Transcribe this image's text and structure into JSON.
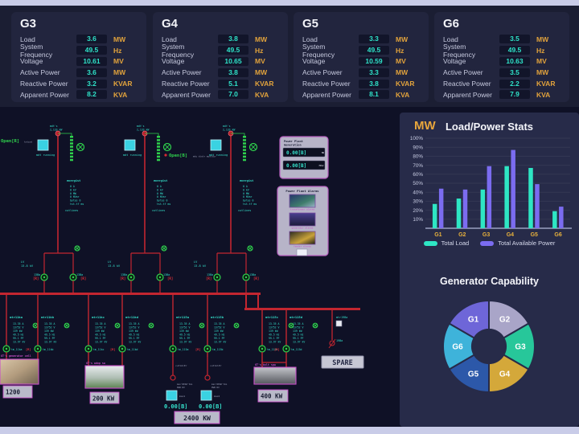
{
  "generator_panels": {
    "row_labels": [
      "Load",
      "System Frequency",
      "Voltage",
      "Active Power",
      "Reactive Power",
      "Apparent Power"
    ],
    "units": [
      "MW",
      "Hz",
      "MV",
      "MW",
      "KVAR",
      "KVA"
    ],
    "panels": [
      {
        "title": "G3",
        "values": [
          "3.6",
          "49.5",
          "10.61",
          "3.6",
          "3.2",
          "8.2"
        ]
      },
      {
        "title": "G4",
        "values": [
          "3.8",
          "49.5",
          "10.65",
          "3.8",
          "5.1",
          "7.0"
        ]
      },
      {
        "title": "G5",
        "values": [
          "3.3",
          "49.5",
          "10.59",
          "3.3",
          "3.8",
          "8.1"
        ]
      },
      {
        "title": "G6",
        "values": [
          "3.5",
          "49.5",
          "10.63",
          "3.5",
          "2.2",
          "7.9"
        ]
      }
    ]
  },
  "schematic": {
    "feeders": [
      {
        "top_lines": [
          "mdt's",
          "2,133 kW"
        ],
        "run_label": "mdt running"
      },
      {
        "top_lines": [
          "mdt's",
          "2,133 kW"
        ],
        "run_label": "mdt running"
      },
      {
        "top_lines": [
          "mdt's",
          "2,133 kW"
        ],
        "run_label": "mdt running"
      }
    ],
    "open_flags": [
      {
        "text": "Open[R]",
        "note": "txtout"
      },
      {
        "text": "Open[B]",
        "note": "mdy distr monitor"
      }
    ],
    "meas_header": "energist",
    "meas_lines": [
      "0 A",
      "0 kV",
      "0 MW",
      "0 MVar",
      "bytes 0",
      "tst.tf ms"
    ],
    "cutlines_label": "cutlines",
    "lv_lines": [
      "LV",
      "13.8 kV"
    ],
    "branch_breaker_label": "13Ba",
    "r_marker": "[R]",
    "bays": [
      {
        "label": "mtr11ka",
        "breaker": "tm_11ka"
      },
      {
        "label": "mtr11kb",
        "breaker": "tm_11kb"
      },
      {
        "label": "mtr11kc",
        "breaker": "tm_11kc"
      },
      {
        "label": "mtr11kd",
        "breaker": "tm_11kd"
      },
      {
        "label": "mtr115a",
        "breaker": "tm_115a"
      },
      {
        "label": "mtr115b",
        "breaker": "tm_115b"
      },
      {
        "label": "mtr115c",
        "breaker": "tm_115c"
      },
      {
        "label": "mtr115d",
        "breaker": "tm_115d"
      }
    ],
    "bay_lines": [
      "13.35 A",
      "13752 V",
      "139 kW",
      "49.5 Hz",
      "99.1 PF",
      "13.97 kV"
    ],
    "meters": {
      "labels": [
        "max1",
        "max2"
      ],
      "top_note": "cutlklEr",
      "mid_notes": [
        "max'READ'tAL",
        "PWR RV"
      ],
      "value": "0.00[B]",
      "total": "2400 KW"
    },
    "photos": [
      {
        "caption": "GT's generator cell",
        "value": "1200"
      },
      {
        "caption": "GT's adop sw",
        "value": "200 KW"
      },
      {
        "caption": "GT's bolt spw",
        "value": "400 KW"
      }
    ],
    "spare": {
      "bay_label": "mtr19Ba",
      "switch_label": "19Ba",
      "box": "SPARE"
    },
    "gen_panel": {
      "title_lines": [
        "Power Plant",
        "Generation"
      ],
      "rows": [
        {
          "value": "0.00[B]",
          "suffix": "MW"
        },
        {
          "value": "0.00[B]",
          "suffix": "MVAr"
        }
      ]
    },
    "alarm_panel": {
      "title": "Power Plant Alarms",
      "items": [
        {
          "caption": "transformer alarms"
        },
        {
          "caption": "generator alarms"
        },
        {
          "caption": "feeder alarms"
        }
      ]
    }
  },
  "chart_data": [
    {
      "type": "bar",
      "title": "Load/Power Stats",
      "unit_label": "MW",
      "categories": [
        "G1",
        "G2",
        "G3",
        "G4",
        "G5",
        "G6"
      ],
      "series": [
        {
          "name": "Total Load",
          "color": "#2ee6c4",
          "values": [
            27,
            33,
            43,
            69,
            67,
            19
          ]
        },
        {
          "name": "Total Available Power",
          "color": "#7b6cf0",
          "values": [
            44,
            43,
            69,
            87,
            49,
            24
          ]
        }
      ],
      "y_ticks": [
        "100%",
        "90%",
        "80%",
        "70%",
        "60%",
        "50%",
        "40%",
        "30%",
        "20%",
        "10%"
      ],
      "ylim": [
        0,
        100
      ],
      "grid": true,
      "legend_position": "bottom"
    },
    {
      "type": "pie",
      "title": "Generator Capability",
      "inner_radius_ratio": 0.37,
      "segments": [
        {
          "label": "G2",
          "color": "#a9a5c8",
          "value": 1
        },
        {
          "label": "G3",
          "color": "#27c79a",
          "value": 1
        },
        {
          "label": "G4",
          "color": "#d4a83a",
          "value": 1
        },
        {
          "label": "G5",
          "color": "#2c58a9",
          "value": 1
        },
        {
          "label": "G6",
          "color": "#3eb3da",
          "value": 1
        },
        {
          "label": "G1",
          "color": "#6e66d8",
          "value": 1
        }
      ]
    }
  ]
}
